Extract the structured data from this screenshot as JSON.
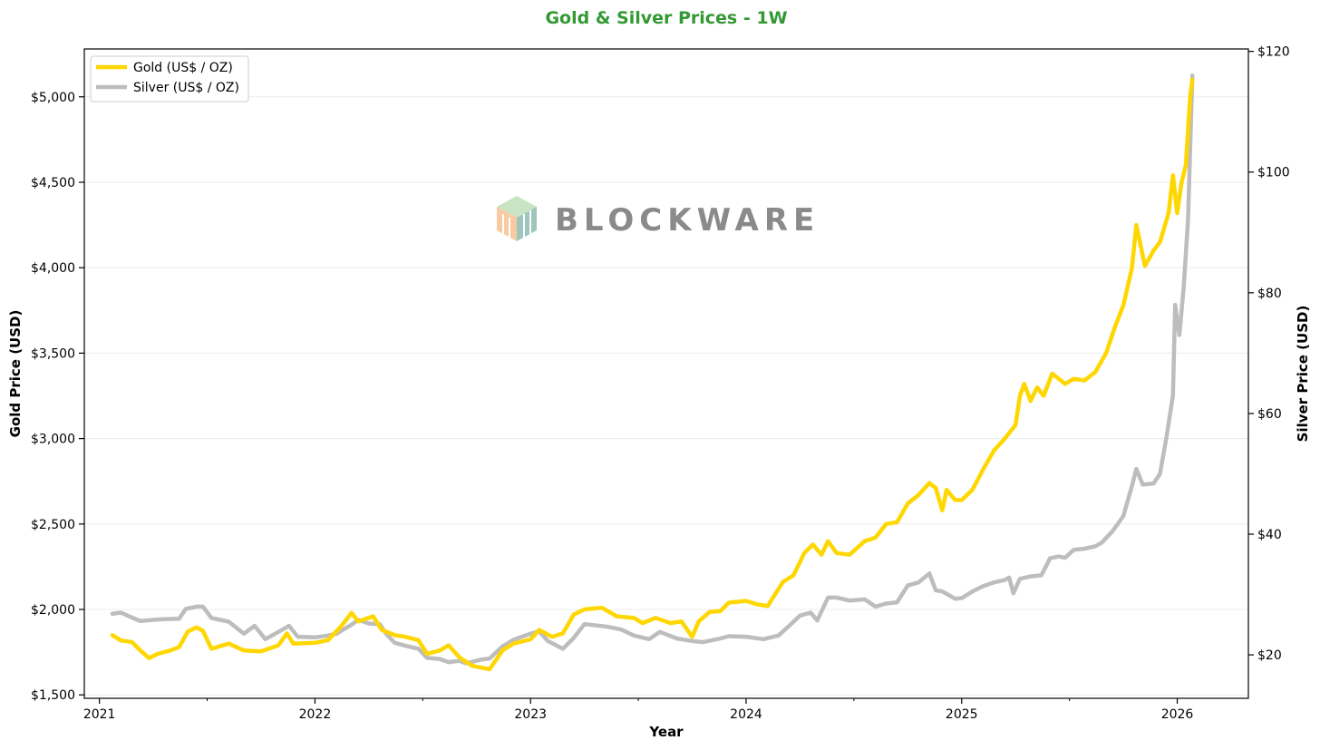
{
  "chart_data": {
    "type": "line",
    "title": "Gold & Silver Prices - 1W",
    "xlabel": "Year",
    "ylabel_left": "Gold Price (USD)",
    "ylabel_right": "Silver Price (USD)",
    "xlim": [
      2020.93,
      2026.33
    ],
    "ylim_left": [
      1480,
      5280
    ],
    "ylim_right": [
      12.8,
      120.4
    ],
    "x_ticks": [
      2021,
      2022,
      2023,
      2024,
      2025,
      2026
    ],
    "x_tick_labels": [
      "2021",
      "2022",
      "2023",
      "2024",
      "2025",
      "2026"
    ],
    "y_left_ticks": [
      1500,
      2000,
      2500,
      3000,
      3500,
      4000,
      4500,
      5000
    ],
    "y_left_tick_labels": [
      "$1,500",
      "$2,000",
      "$2,500",
      "$3,000",
      "$3,500",
      "$4,000",
      "$4,500",
      "$5,000"
    ],
    "y_right_ticks": [
      20,
      40,
      60,
      80,
      100,
      120
    ],
    "y_right_tick_labels": [
      "$20",
      "$40",
      "$60",
      "$80",
      "$100",
      "$120"
    ],
    "grid": true,
    "legend_position": "top-left",
    "watermark": "BLOCKWARE",
    "colors": {
      "title": "#339933",
      "gold": "#FFD700",
      "silver": "#BDBDBD",
      "grid": "#ececec"
    },
    "series": [
      {
        "name": "Gold (US$ / OZ)",
        "axis": "left",
        "points": [
          [
            2021.06,
            1850
          ],
          [
            2021.1,
            1818
          ],
          [
            2021.15,
            1810
          ],
          [
            2021.19,
            1760
          ],
          [
            2021.23,
            1715
          ],
          [
            2021.27,
            1740
          ],
          [
            2021.33,
            1760
          ],
          [
            2021.37,
            1780
          ],
          [
            2021.41,
            1870
          ],
          [
            2021.45,
            1895
          ],
          [
            2021.48,
            1875
          ],
          [
            2021.52,
            1770
          ],
          [
            2021.6,
            1800
          ],
          [
            2021.67,
            1760
          ],
          [
            2021.75,
            1755
          ],
          [
            2021.83,
            1790
          ],
          [
            2021.87,
            1860
          ],
          [
            2021.9,
            1800
          ],
          [
            2022.0,
            1805
          ],
          [
            2022.06,
            1820
          ],
          [
            2022.12,
            1900
          ],
          [
            2022.17,
            1980
          ],
          [
            2022.2,
            1930
          ],
          [
            2022.27,
            1960
          ],
          [
            2022.31,
            1880
          ],
          [
            2022.37,
            1850
          ],
          [
            2022.42,
            1840
          ],
          [
            2022.48,
            1820
          ],
          [
            2022.52,
            1740
          ],
          [
            2022.58,
            1760
          ],
          [
            2022.62,
            1790
          ],
          [
            2022.67,
            1720
          ],
          [
            2022.73,
            1670
          ],
          [
            2022.77,
            1660
          ],
          [
            2022.81,
            1650
          ],
          [
            2022.87,
            1760
          ],
          [
            2022.92,
            1800
          ],
          [
            2023.0,
            1825
          ],
          [
            2023.04,
            1880
          ],
          [
            2023.1,
            1840
          ],
          [
            2023.15,
            1860
          ],
          [
            2023.2,
            1970
          ],
          [
            2023.25,
            2000
          ],
          [
            2023.33,
            2010
          ],
          [
            2023.4,
            1960
          ],
          [
            2023.48,
            1950
          ],
          [
            2023.52,
            1920
          ],
          [
            2023.58,
            1950
          ],
          [
            2023.65,
            1920
          ],
          [
            2023.7,
            1930
          ],
          [
            2023.75,
            1840
          ],
          [
            2023.78,
            1930
          ],
          [
            2023.83,
            1985
          ],
          [
            2023.88,
            1990
          ],
          [
            2023.92,
            2040
          ],
          [
            2024.0,
            2050
          ],
          [
            2024.05,
            2030
          ],
          [
            2024.1,
            2020
          ],
          [
            2024.17,
            2160
          ],
          [
            2024.22,
            2200
          ],
          [
            2024.27,
            2330
          ],
          [
            2024.31,
            2380
          ],
          [
            2024.35,
            2320
          ],
          [
            2024.38,
            2400
          ],
          [
            2024.42,
            2330
          ],
          [
            2024.48,
            2320
          ],
          [
            2024.55,
            2400
          ],
          [
            2024.6,
            2420
          ],
          [
            2024.65,
            2500
          ],
          [
            2024.7,
            2510
          ],
          [
            2024.75,
            2620
          ],
          [
            2024.8,
            2670
          ],
          [
            2024.85,
            2740
          ],
          [
            2024.88,
            2710
          ],
          [
            2024.91,
            2580
          ],
          [
            2024.93,
            2700
          ],
          [
            2024.97,
            2640
          ],
          [
            2025.0,
            2640
          ],
          [
            2025.05,
            2700
          ],
          [
            2025.1,
            2820
          ],
          [
            2025.15,
            2930
          ],
          [
            2025.2,
            3000
          ],
          [
            2025.25,
            3080
          ],
          [
            2025.27,
            3250
          ],
          [
            2025.29,
            3320
          ],
          [
            2025.32,
            3220
          ],
          [
            2025.35,
            3300
          ],
          [
            2025.38,
            3250
          ],
          [
            2025.42,
            3380
          ],
          [
            2025.48,
            3320
          ],
          [
            2025.52,
            3350
          ],
          [
            2025.57,
            3340
          ],
          [
            2025.62,
            3390
          ],
          [
            2025.67,
            3500
          ],
          [
            2025.71,
            3650
          ],
          [
            2025.75,
            3780
          ],
          [
            2025.79,
            4000
          ],
          [
            2025.81,
            4250
          ],
          [
            2025.85,
            4010
          ],
          [
            2025.89,
            4100
          ],
          [
            2025.92,
            4150
          ],
          [
            2025.96,
            4320
          ],
          [
            2025.98,
            4540
          ],
          [
            2026.0,
            4320
          ],
          [
            2026.02,
            4500
          ],
          [
            2026.04,
            4600
          ],
          [
            2026.06,
            5000
          ],
          [
            2026.07,
            5100
          ]
        ]
      },
      {
        "name": "Silver (US$ / OZ)",
        "axis": "right",
        "points": [
          [
            2021.06,
            26.8
          ],
          [
            2021.1,
            27.0
          ],
          [
            2021.15,
            26.2
          ],
          [
            2021.19,
            25.6
          ],
          [
            2021.25,
            25.8
          ],
          [
            2021.3,
            25.9
          ],
          [
            2021.37,
            26.0
          ],
          [
            2021.4,
            27.6
          ],
          [
            2021.45,
            28.0
          ],
          [
            2021.48,
            28.0
          ],
          [
            2021.52,
            26.1
          ],
          [
            2021.6,
            25.5
          ],
          [
            2021.67,
            23.5
          ],
          [
            2021.72,
            24.8
          ],
          [
            2021.77,
            22.6
          ],
          [
            2021.83,
            23.8
          ],
          [
            2021.88,
            24.8
          ],
          [
            2021.92,
            23.0
          ],
          [
            2022.0,
            22.9
          ],
          [
            2022.06,
            23.2
          ],
          [
            2022.1,
            23.5
          ],
          [
            2022.17,
            25.0
          ],
          [
            2022.2,
            25.8
          ],
          [
            2022.25,
            25.2
          ],
          [
            2022.3,
            25.1
          ],
          [
            2022.33,
            23.5
          ],
          [
            2022.37,
            22.0
          ],
          [
            2022.42,
            21.5
          ],
          [
            2022.48,
            21.0
          ],
          [
            2022.52,
            19.5
          ],
          [
            2022.58,
            19.3
          ],
          [
            2022.62,
            18.8
          ],
          [
            2022.67,
            19.0
          ],
          [
            2022.7,
            18.6
          ],
          [
            2022.77,
            19.2
          ],
          [
            2022.81,
            19.4
          ],
          [
            2022.87,
            21.4
          ],
          [
            2022.92,
            22.5
          ],
          [
            2023.0,
            23.5
          ],
          [
            2023.04,
            23.9
          ],
          [
            2023.08,
            22.3
          ],
          [
            2023.15,
            21.0
          ],
          [
            2023.2,
            22.8
          ],
          [
            2023.25,
            25.1
          ],
          [
            2023.35,
            24.7
          ],
          [
            2023.42,
            24.2
          ],
          [
            2023.48,
            23.2
          ],
          [
            2023.55,
            22.6
          ],
          [
            2023.6,
            23.8
          ],
          [
            2023.68,
            22.7
          ],
          [
            2023.75,
            22.3
          ],
          [
            2023.8,
            22.1
          ],
          [
            2023.88,
            22.7
          ],
          [
            2023.92,
            23.1
          ],
          [
            2024.0,
            23.0
          ],
          [
            2024.08,
            22.6
          ],
          [
            2024.15,
            23.2
          ],
          [
            2024.2,
            24.8
          ],
          [
            2024.25,
            26.5
          ],
          [
            2024.3,
            27.0
          ],
          [
            2024.33,
            25.7
          ],
          [
            2024.38,
            29.5
          ],
          [
            2024.42,
            29.5
          ],
          [
            2024.48,
            29.0
          ],
          [
            2024.55,
            29.2
          ],
          [
            2024.6,
            28.0
          ],
          [
            2024.65,
            28.5
          ],
          [
            2024.7,
            28.7
          ],
          [
            2024.75,
            31.5
          ],
          [
            2024.8,
            32.0
          ],
          [
            2024.85,
            33.5
          ],
          [
            2024.88,
            30.7
          ],
          [
            2024.91,
            30.5
          ],
          [
            2024.97,
            29.3
          ],
          [
            2025.0,
            29.4
          ],
          [
            2025.05,
            30.5
          ],
          [
            2025.1,
            31.4
          ],
          [
            2025.15,
            32.0
          ],
          [
            2025.2,
            32.4
          ],
          [
            2025.22,
            32.8
          ],
          [
            2025.24,
            30.2
          ],
          [
            2025.27,
            32.6
          ],
          [
            2025.32,
            33.0
          ],
          [
            2025.37,
            33.2
          ],
          [
            2025.41,
            36.0
          ],
          [
            2025.45,
            36.3
          ],
          [
            2025.48,
            36.1
          ],
          [
            2025.52,
            37.4
          ],
          [
            2025.57,
            37.6
          ],
          [
            2025.62,
            38.0
          ],
          [
            2025.65,
            38.6
          ],
          [
            2025.7,
            40.5
          ],
          [
            2025.75,
            43.0
          ],
          [
            2025.79,
            48.0
          ],
          [
            2025.81,
            50.8
          ],
          [
            2025.84,
            48.2
          ],
          [
            2025.89,
            48.4
          ],
          [
            2025.92,
            50.0
          ],
          [
            2025.95,
            56.0
          ],
          [
            2025.98,
            63.0
          ],
          [
            2025.99,
            78.0
          ],
          [
            2026.01,
            73.0
          ],
          [
            2026.03,
            81.0
          ],
          [
            2026.05,
            92.0
          ],
          [
            2026.07,
            116.0
          ]
        ]
      }
    ]
  }
}
